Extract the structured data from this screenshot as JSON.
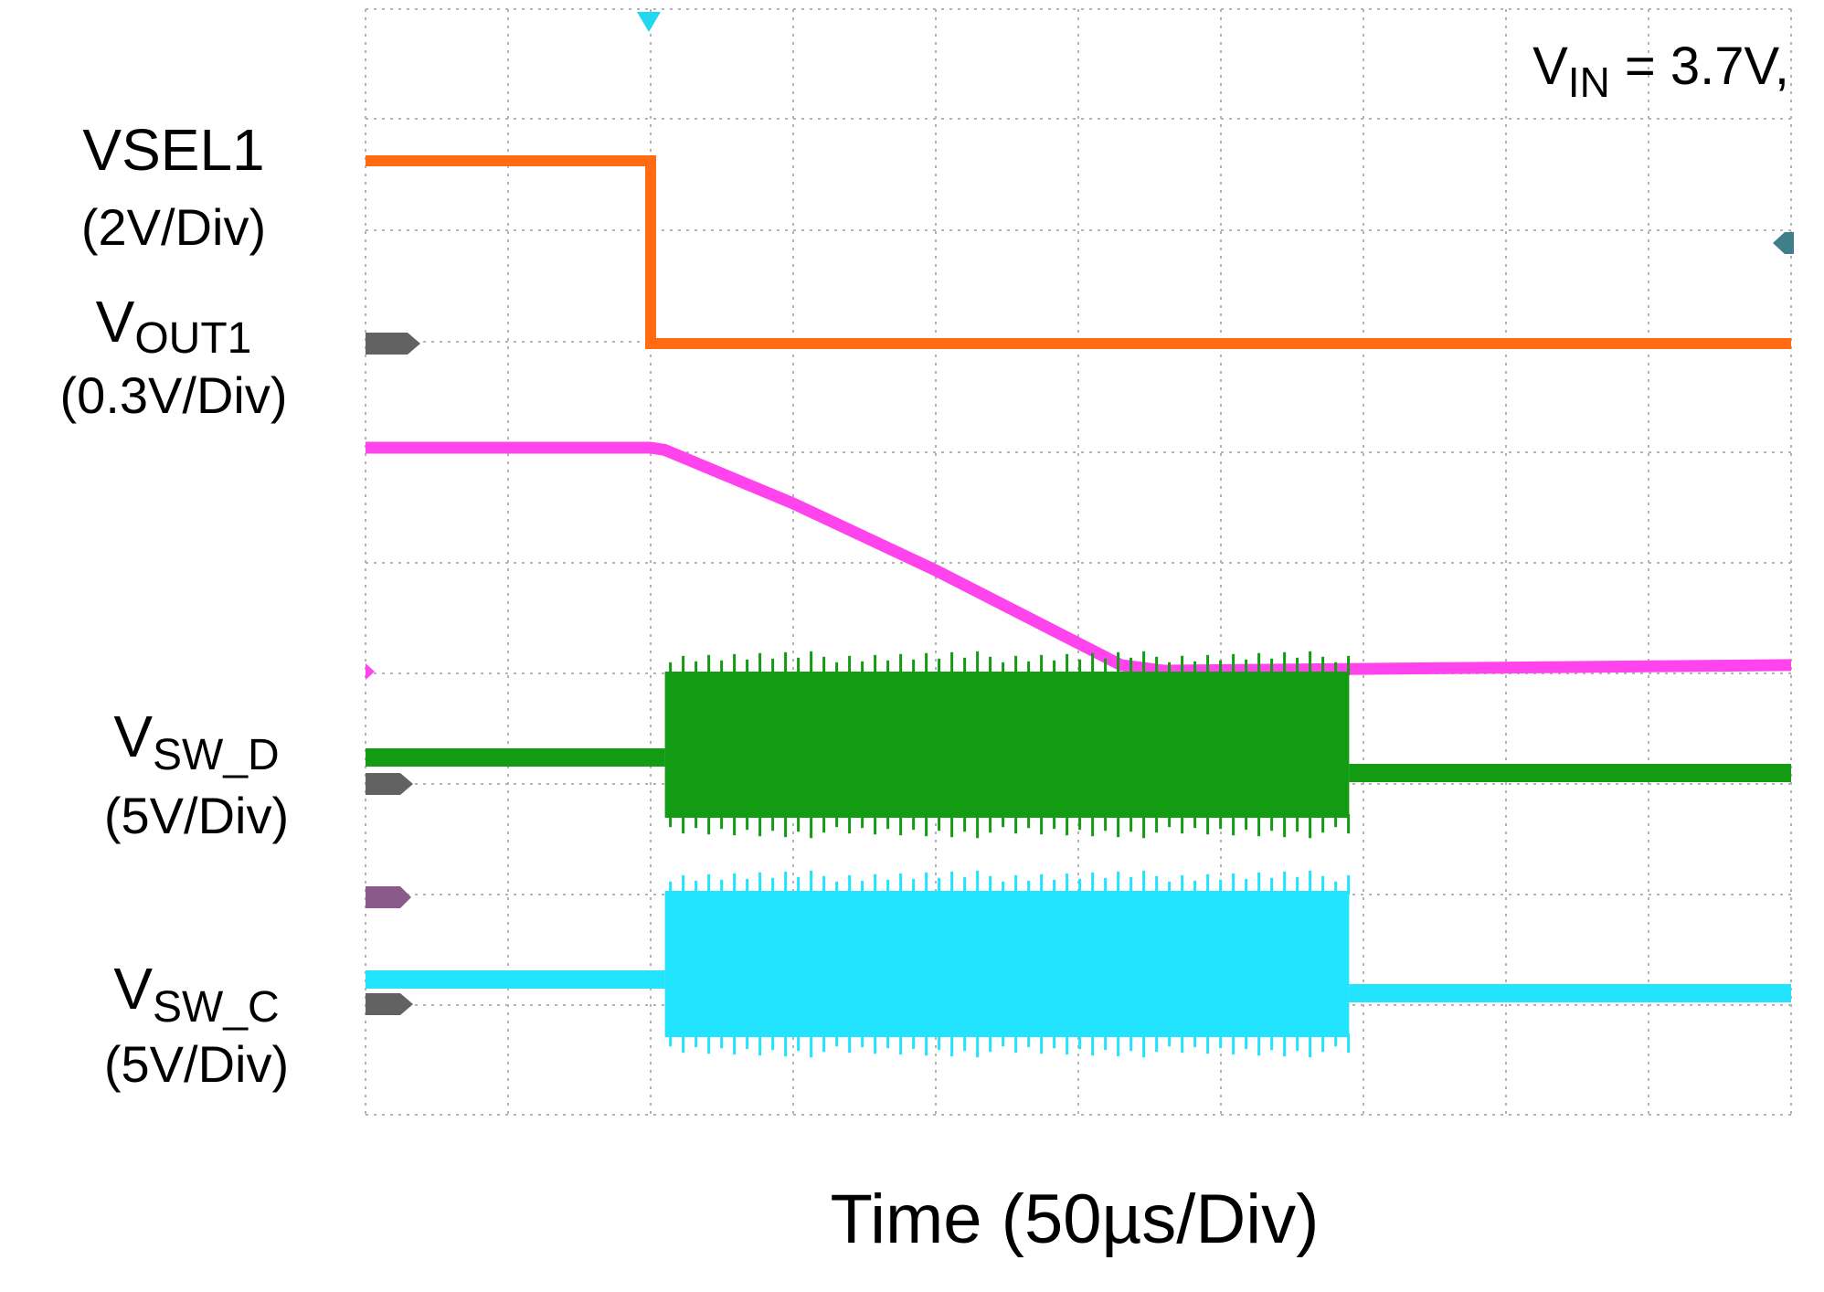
{
  "chart_data": {
    "type": "line",
    "title": "",
    "annotation": {
      "main": "V",
      "sub": "IN",
      "rest": " = 3.7V,"
    },
    "xlabel": "Time (50µs/Div)",
    "x_unit": "div",
    "xlim": [
      -5,
      5
    ],
    "ylim": [
      -4,
      4
    ],
    "grid": true,
    "grid_divisions": {
      "x": 10,
      "y": 8
    },
    "trigger_x_div": -3,
    "colors": {
      "vsel1": "#ff6a13",
      "vout1": "#ff44ee",
      "vsw_d": "#139b13",
      "vsw_c": "#22e4ff",
      "grid": "#b4b4b4",
      "marker": "#626262",
      "trigger": "#22d8ee"
    },
    "series": [
      {
        "key": "vsel1",
        "label_main": "VSEL1",
        "label_sub": "",
        "scale": "(2V/Div)",
        "points": [
          [
            -5,
            2.5
          ],
          [
            -3,
            2.5
          ],
          [
            -3,
            0.9
          ],
          [
            5,
            0.9
          ]
        ]
      },
      {
        "key": "vout1",
        "label_main": "V",
        "label_sub": "OUT1",
        "scale": "(0.3V/Div)",
        "points": [
          [
            -5,
            0.0
          ],
          [
            -3,
            0.0
          ],
          [
            -2.9,
            -0.02
          ],
          [
            -2.0,
            -0.5
          ],
          [
            -1.0,
            -1.1
          ],
          [
            0.3,
            -1.95
          ],
          [
            0.6,
            -2.0
          ],
          [
            5,
            -1.95
          ]
        ]
      },
      {
        "key": "vsw_d",
        "label_main": "V",
        "label_sub": "SW_D",
        "scale": "(5V/Div)",
        "base_before": -2.7,
        "base_after": -2.85,
        "burst": [
          -2.9,
          1.9
        ],
        "burst_top": -1.9,
        "burst_bottom": -3.4
      },
      {
        "key": "vsw_c",
        "label_main": "V",
        "label_sub": "SW_C",
        "scale": "(5V/Div)",
        "base_before": -4.7,
        "base_after": -4.8,
        "burst": [
          -2.9,
          1.9
        ],
        "burst_top": -3.9,
        "burst_bottom": -5.5
      }
    ]
  }
}
